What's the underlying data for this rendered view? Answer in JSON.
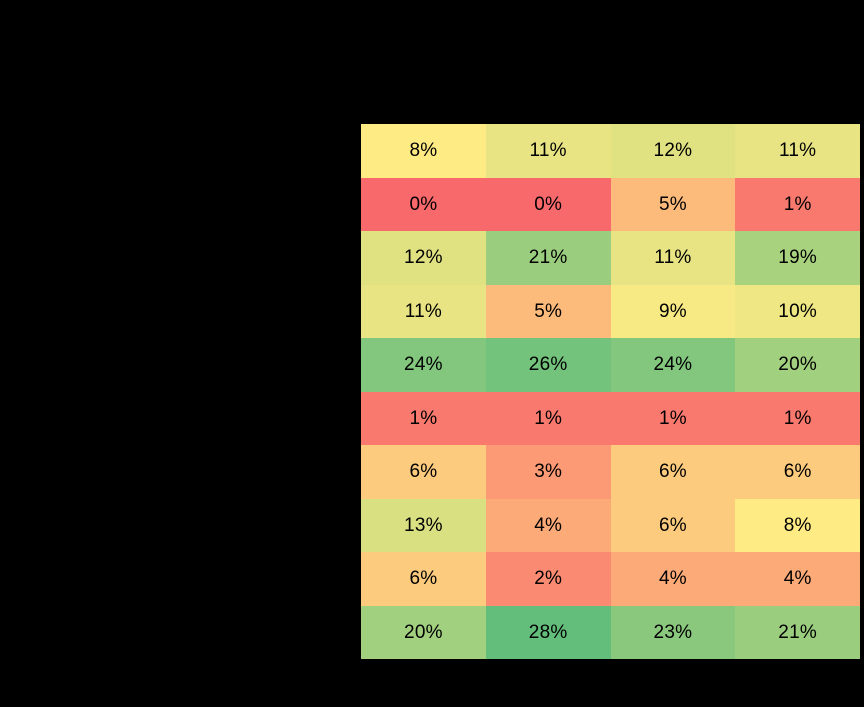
{
  "canvas": {
    "background_color": "#000000"
  },
  "chart_data": {
    "type": "heatmap",
    "title": "",
    "columns": 4,
    "rows": 10,
    "cell_labels": [
      [
        "8%",
        "11%",
        "12%",
        "11%"
      ],
      [
        "0%",
        "0%",
        "5%",
        "1%"
      ],
      [
        "12%",
        "21%",
        "11%",
        "19%"
      ],
      [
        "11%",
        "5%",
        "9%",
        "10%"
      ],
      [
        "24%",
        "26%",
        "24%",
        "20%"
      ],
      [
        "1%",
        "1%",
        "1%",
        "1%"
      ],
      [
        "6%",
        "3%",
        "6%",
        "6%"
      ],
      [
        "13%",
        "4%",
        "6%",
        "8%"
      ],
      [
        "6%",
        "2%",
        "4%",
        "4%"
      ],
      [
        "20%",
        "28%",
        "23%",
        "21%"
      ]
    ],
    "values": [
      [
        8,
        11,
        12,
        11
      ],
      [
        0,
        0,
        5,
        1
      ],
      [
        12,
        21,
        11,
        19
      ],
      [
        11,
        5,
        9,
        10
      ],
      [
        24,
        26,
        24,
        20
      ],
      [
        1,
        1,
        1,
        1
      ],
      [
        6,
        3,
        6,
        6
      ],
      [
        13,
        4,
        6,
        8
      ],
      [
        6,
        2,
        4,
        4
      ],
      [
        20,
        28,
        23,
        21
      ]
    ],
    "cell_colors": [
      [
        "#FFEB84",
        "#E8E483",
        "#E0E282",
        "#E8E483"
      ],
      [
        "#F8696B",
        "#F8696B",
        "#FCBA7B",
        "#F9796E"
      ],
      [
        "#E0E282",
        "#9ACE7E",
        "#E8E483",
        "#A9D27F"
      ],
      [
        "#E8E483",
        "#FCBA7B",
        "#F7E984",
        "#EFE783"
      ],
      [
        "#82C77D",
        "#73C37C",
        "#82C77D",
        "#A1D07F"
      ],
      [
        "#F9796E",
        "#F9796E",
        "#F9796E",
        "#F9796E"
      ],
      [
        "#FDCB7E",
        "#FB9A74",
        "#FDCB7E",
        "#FDCB7E"
      ],
      [
        "#D8E082",
        "#FCAA78",
        "#FDCB7E",
        "#FFEB84"
      ],
      [
        "#FDCB7E",
        "#FA8A71",
        "#FCAA78",
        "#FCAA78"
      ],
      [
        "#A1D07F",
        "#63BE7B",
        "#8AC97D",
        "#9ACE7E"
      ]
    ],
    "text_color": "#000000",
    "color_scale": {
      "type": "3-color",
      "min_value": 0,
      "min_color": "#F8696B",
      "mid_value": 8,
      "mid_color": "#FFEB84",
      "max_value": 28,
      "max_color": "#63BE7B"
    },
    "legend": "none",
    "grid_lines": "off"
  }
}
